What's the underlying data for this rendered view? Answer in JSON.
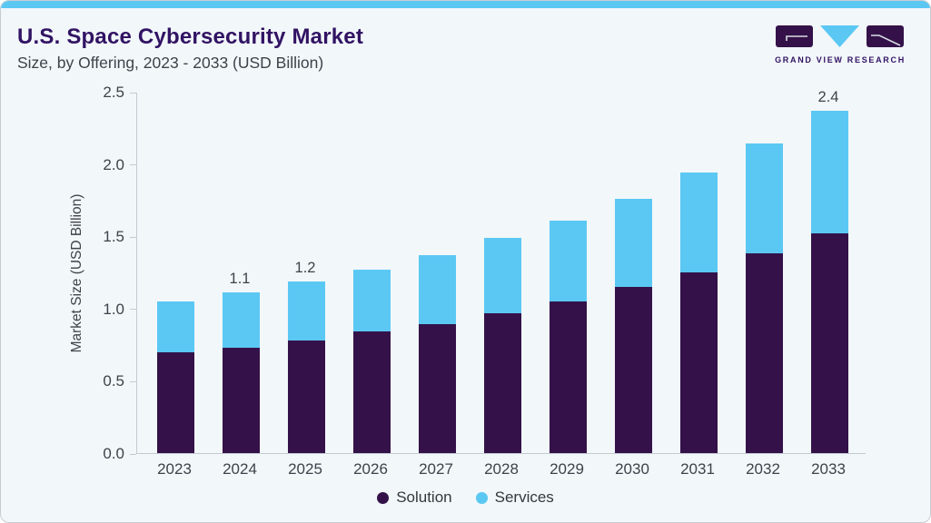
{
  "header": {
    "title": "U.S. Space Cybersecurity Market",
    "subtitle": "Size, by Offering, 2023 - 2033 (USD Billion)",
    "logo_text": "GRAND VIEW RESEARCH"
  },
  "colors": {
    "card_background": "#f2f7fa",
    "accent_blue": "#5bc8f3",
    "solution_purple": "#341249",
    "services_blue": "#5bc8f3",
    "title_purple": "#311363",
    "axis_line": "#c3cad1",
    "text": "#3d434a"
  },
  "chart_data": {
    "type": "bar",
    "stacked": true,
    "title": "U.S. Space Cybersecurity Market Size, by Offering, 2023 - 2033 (USD Billion)",
    "categories": [
      "2023",
      "2024",
      "2025",
      "2026",
      "2027",
      "2028",
      "2029",
      "2030",
      "2031",
      "2032",
      "2033"
    ],
    "series": [
      {
        "name": "Solution",
        "color": "#341249",
        "values": [
          0.7,
          0.73,
          0.78,
          0.84,
          0.89,
          0.97,
          1.05,
          1.15,
          1.25,
          1.38,
          1.52
        ]
      },
      {
        "name": "Services",
        "color": "#5bc8f3",
        "values": [
          0.35,
          0.38,
          0.41,
          0.43,
          0.48,
          0.52,
          0.56,
          0.61,
          0.69,
          0.76,
          0.85
        ]
      }
    ],
    "totals": [
      1.05,
      1.11,
      1.19,
      1.27,
      1.37,
      1.49,
      1.61,
      1.76,
      1.94,
      2.14,
      2.37
    ],
    "totals_labels": {
      "2024": "1.1",
      "2025": "1.2",
      "2033": "2.4"
    },
    "xlabel": "",
    "ylabel": "Market Size (USD Billion)",
    "ylim": [
      0,
      2.5
    ],
    "yticks": [
      "0.0",
      "0.5",
      "1.0",
      "1.5",
      "2.0",
      "2.5"
    ],
    "grid": false,
    "legend_position": "bottom-center"
  }
}
